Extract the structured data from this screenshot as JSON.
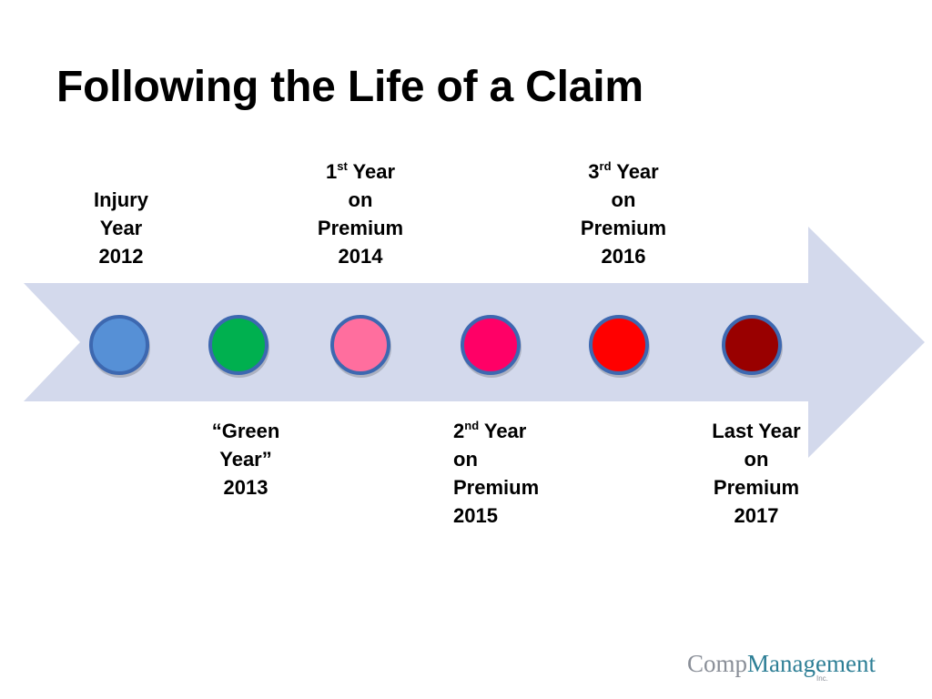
{
  "title": "Following the Life of a Claim",
  "colors": {
    "arrow": "#d3d9ec",
    "node_border": "#3d68b0"
  },
  "nodes": [
    {
      "id": "injury-year",
      "color": "#5690d6",
      "label_lines": [
        {
          "main": "Injury"
        },
        {
          "main": "Year"
        },
        {
          "main": "2012"
        }
      ],
      "label_position": "above"
    },
    {
      "id": "green-year",
      "color": "#00b04f",
      "label_lines": [
        {
          "main": "“Green"
        },
        {
          "main": "Year”"
        },
        {
          "main": "2013"
        }
      ],
      "label_position": "below"
    },
    {
      "id": "1st-year-premium",
      "color": "#ff6e9e",
      "label_lines": [
        {
          "main": "1",
          "sup": "st",
          "rest": " Year"
        },
        {
          "main": "on"
        },
        {
          "main": "Premium"
        },
        {
          "main": "2014"
        }
      ],
      "label_position": "above"
    },
    {
      "id": "2nd-year-premium",
      "color": "#ff0066",
      "label_lines": [
        {
          "main": "2",
          "sup": "nd",
          "rest": " Year"
        },
        {
          "main": "on"
        },
        {
          "main": "Premium"
        },
        {
          "main": "2015"
        }
      ],
      "label_position": "below"
    },
    {
      "id": "3rd-year-premium",
      "color": "#ff0000",
      "label_lines": [
        {
          "main": "3",
          "sup": "rd",
          "rest": " Year"
        },
        {
          "main": "on"
        },
        {
          "main": "Premium"
        },
        {
          "main": "2016"
        }
      ],
      "label_position": "above"
    },
    {
      "id": "last-year-premium",
      "color": "#990000",
      "label_lines": [
        {
          "main": "Last Year"
        },
        {
          "main": "on"
        },
        {
          "main": "Premium"
        },
        {
          "main": "2017"
        }
      ],
      "label_position": "below"
    }
  ],
  "logo": {
    "comp": "Comp",
    "management": "Management",
    "inc": "Inc."
  }
}
